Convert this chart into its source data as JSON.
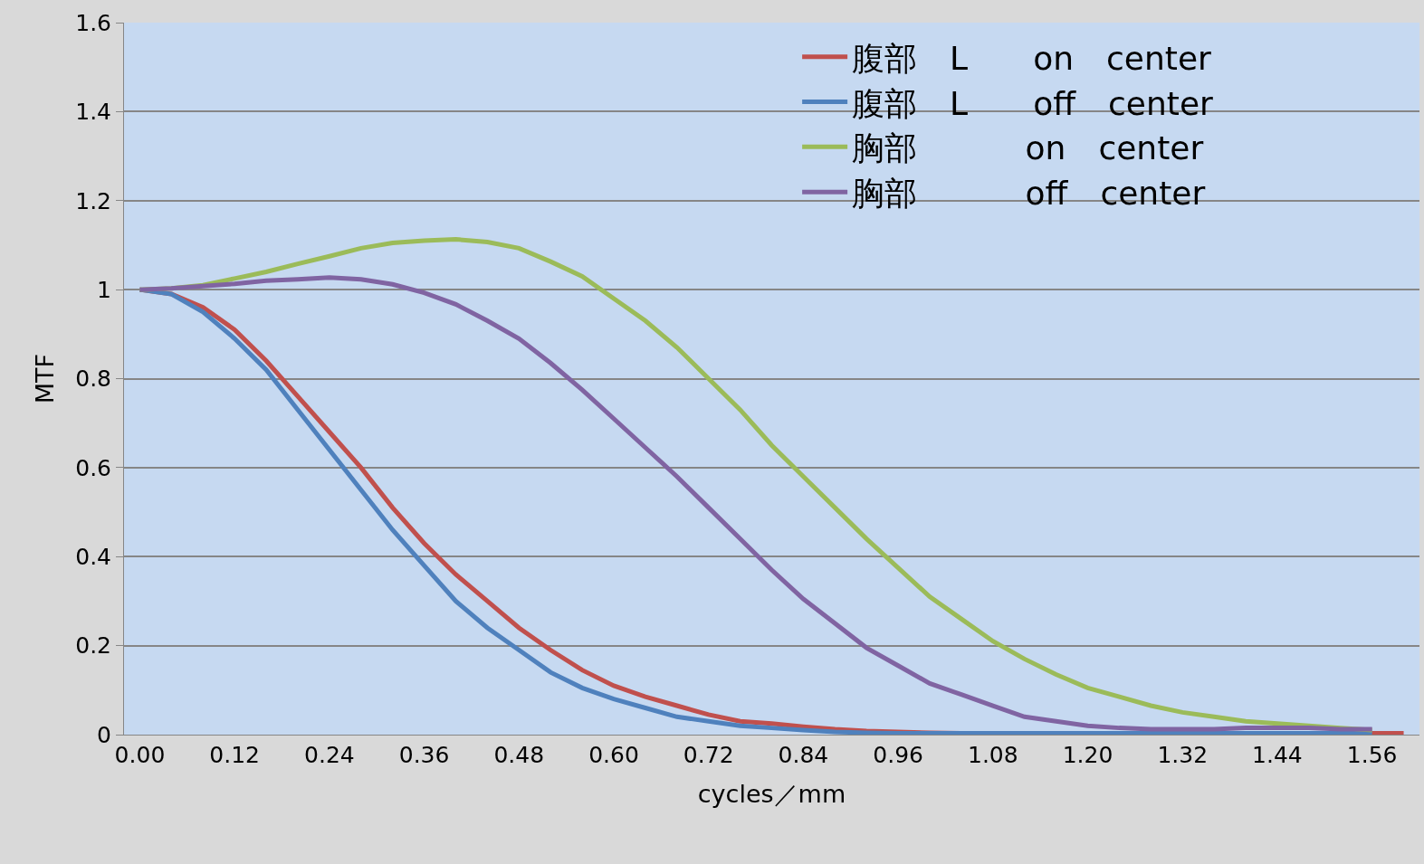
{
  "chart_data": {
    "type": "line",
    "xlabel": "cycles／mm",
    "ylabel": "MTF",
    "categories": [
      "0.00",
      null,
      null,
      "0.12",
      null,
      null,
      "0.24",
      null,
      null,
      "0.36",
      null,
      null,
      "0.48",
      null,
      null,
      "0.60",
      null,
      null,
      "0.72",
      null,
      null,
      "0.84",
      null,
      null,
      "0.96",
      null,
      null,
      "1.08",
      null,
      null,
      "1.20",
      null,
      null,
      "1.32",
      null,
      null,
      "1.44",
      null,
      null,
      "1.56",
      null
    ],
    "ylim": [
      0,
      1.6
    ],
    "yticks": [
      0,
      0.2,
      0.4,
      0.6,
      0.8,
      1,
      1.2,
      1.4,
      1.6
    ],
    "grid": "y",
    "legend": "top right",
    "marker": "none",
    "line_style": "solid",
    "series": [
      {
        "name": "腹部　L　　on　center",
        "color": "#c0504d",
        "values": [
          1,
          0.99,
          0.96,
          0.91,
          0.84,
          0.76,
          0.68,
          0.6,
          0.51,
          0.43,
          0.36,
          0.3,
          0.24,
          0.19,
          0.145,
          0.11,
          0.085,
          0.065,
          0.045,
          0.03,
          0.025,
          0.018,
          0.012,
          0.008,
          0.006,
          0.004,
          0.003,
          0.003,
          0.003,
          0.003,
          0.003,
          0.003,
          0.003,
          0.003,
          0.003,
          0.003,
          0.003,
          0.003,
          0.003,
          0.003,
          0.003
        ]
      },
      {
        "name": "腹部　L　　off　center",
        "color": "#4f81bd",
        "values": [
          1,
          0.99,
          0.95,
          0.89,
          0.82,
          0.73,
          0.64,
          0.55,
          0.46,
          0.38,
          0.3,
          0.24,
          0.19,
          0.14,
          0.105,
          0.08,
          0.06,
          0.04,
          0.03,
          0.02,
          0.015,
          0.01,
          0.006,
          0.004,
          0.003,
          0.003,
          0.003,
          0.003,
          0.003,
          0.003,
          0.003,
          0.003,
          0.003,
          0.003,
          0.003,
          0.003,
          0.003,
          0.003,
          0.003,
          0.003,
          null
        ]
      },
      {
        "name": "胸部　　　 on　center",
        "color": "#9bbb59",
        "values": [
          1,
          1.003,
          1.01,
          1.025,
          1.04,
          1.058,
          1.075,
          1.093,
          1.105,
          1.11,
          1.113,
          1.107,
          1.093,
          1.063,
          1.03,
          0.98,
          0.93,
          0.87,
          0.8,
          0.73,
          0.65,
          0.58,
          0.51,
          0.44,
          0.375,
          0.31,
          0.26,
          0.21,
          0.17,
          0.135,
          0.105,
          0.085,
          0.065,
          0.05,
          0.04,
          0.03,
          0.025,
          0.02,
          0.015,
          0.01,
          null
        ]
      },
      {
        "name": "胸部　　　 off　center",
        "color": "#8064a2",
        "values": [
          1,
          1.003,
          1.008,
          1.013,
          1.02,
          1.023,
          1.027,
          1.023,
          1.012,
          0.993,
          0.967,
          0.93,
          0.89,
          0.835,
          0.775,
          0.71,
          0.645,
          0.58,
          0.51,
          0.44,
          0.37,
          0.305,
          0.25,
          0.195,
          0.155,
          0.115,
          0.09,
          0.065,
          0.04,
          0.03,
          0.02,
          0.015,
          0.012,
          0.012,
          0.012,
          0.015,
          0.015,
          0.015,
          0.012,
          0.012,
          null
        ]
      }
    ]
  }
}
